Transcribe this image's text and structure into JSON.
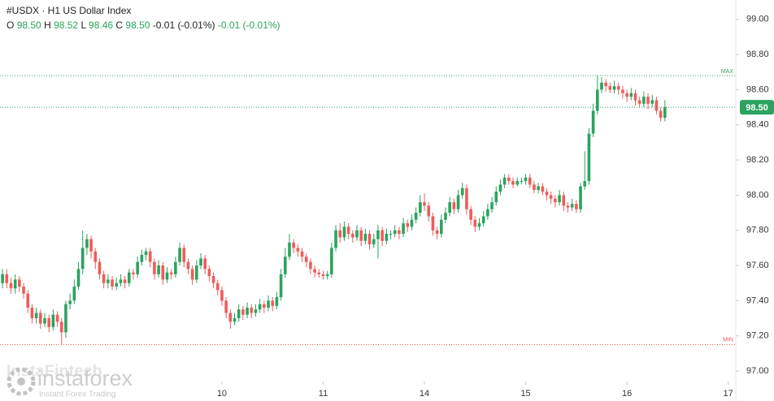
{
  "chart_data": {
    "type": "candlestick",
    "header": {
      "symbol": "#USDX · H1 US Dollar Index",
      "ohlc_labels": [
        "O",
        "H",
        "L",
        "C"
      ],
      "ohlc_values": [
        "98.50",
        "98.52",
        "98.46",
        "98.50"
      ],
      "changes": [
        "-0.01 (-0.01%)",
        "-0.01 (-0.01%)"
      ]
    },
    "up_color": "#2ba35e",
    "down_color": "#ef5b5b",
    "ylim": [
      96.94,
      99.11
    ],
    "yticks": [
      {
        "value": 97,
        "label": "97.00"
      },
      {
        "value": 97.2,
        "label": "97.20"
      },
      {
        "value": 97.4,
        "label": "97.40"
      },
      {
        "value": 97.6,
        "label": "97.60"
      },
      {
        "value": 97.8,
        "label": "97.80"
      },
      {
        "value": 98,
        "label": "98.00"
      },
      {
        "value": 98.2,
        "label": "98.20"
      },
      {
        "value": 98.4,
        "label": "98.40"
      },
      {
        "value": 98.6,
        "label": "98.60"
      },
      {
        "value": 98.8,
        "label": "98.80"
      },
      {
        "value": 99,
        "label": "99.00"
      }
    ],
    "xlim": [
      -0.6,
      173.8
    ],
    "xticks": [
      {
        "value": 52,
        "label": "10"
      },
      {
        "value": 76,
        "label": "11"
      },
      {
        "value": 100,
        "label": "14"
      },
      {
        "value": 124,
        "label": "15"
      },
      {
        "value": 148,
        "label": "16"
      },
      {
        "value": 172,
        "label": "17"
      }
    ],
    "max_line": {
      "label": "MAX",
      "value": 98.68
    },
    "min_line": {
      "label": "MIN",
      "value": 97.15
    },
    "last_price": {
      "value": 98.5,
      "label": "98.50"
    },
    "watermark": {
      "brand": "instaforex",
      "tagline": "Instant Forex Trading",
      "faint": "InstaFintech"
    },
    "candles": [
      [
        97.5,
        97.58,
        97.47,
        97.55
      ],
      [
        97.55,
        97.58,
        97.47,
        97.5
      ],
      [
        97.5,
        97.53,
        97.44,
        97.47
      ],
      [
        97.47,
        97.55,
        97.44,
        97.52
      ],
      [
        97.52,
        97.54,
        97.45,
        97.48
      ],
      [
        97.48,
        97.5,
        97.41,
        97.44
      ],
      [
        97.44,
        97.46,
        97.33,
        97.36
      ],
      [
        97.36,
        97.38,
        97.27,
        97.3
      ],
      [
        97.3,
        97.36,
        97.27,
        97.33
      ],
      [
        97.33,
        97.35,
        97.24,
        97.27
      ],
      [
        97.27,
        97.33,
        97.25,
        97.3
      ],
      [
        97.3,
        97.32,
        97.22,
        97.25
      ],
      [
        97.25,
        97.35,
        97.23,
        97.32
      ],
      [
        97.32,
        97.34,
        97.25,
        97.28
      ],
      [
        97.28,
        97.3,
        97.15,
        97.22
      ],
      [
        97.22,
        97.4,
        97.19,
        97.38
      ],
      [
        97.38,
        97.44,
        97.35,
        97.4
      ],
      [
        97.4,
        97.52,
        97.38,
        97.48
      ],
      [
        97.48,
        97.62,
        97.46,
        97.58
      ],
      [
        97.58,
        97.8,
        97.55,
        97.7
      ],
      [
        97.7,
        97.78,
        97.66,
        97.75
      ],
      [
        97.75,
        97.77,
        97.64,
        97.68
      ],
      [
        97.68,
        97.7,
        97.58,
        97.62
      ],
      [
        97.62,
        97.64,
        97.52,
        97.55
      ],
      [
        97.55,
        97.57,
        97.47,
        97.5
      ],
      [
        97.5,
        97.55,
        97.47,
        97.52
      ],
      [
        97.52,
        97.54,
        97.46,
        97.48
      ],
      [
        97.48,
        97.53,
        97.46,
        97.5
      ],
      [
        97.5,
        97.55,
        97.48,
        97.52
      ],
      [
        97.52,
        97.54,
        97.47,
        97.5
      ],
      [
        97.5,
        97.58,
        97.48,
        97.56
      ],
      [
        97.56,
        97.58,
        97.52,
        97.55
      ],
      [
        97.55,
        97.65,
        97.53,
        97.62
      ],
      [
        97.62,
        97.69,
        97.6,
        97.66
      ],
      [
        97.66,
        97.7,
        97.63,
        97.68
      ],
      [
        97.68,
        97.7,
        97.59,
        97.62
      ],
      [
        97.62,
        97.64,
        97.52,
        97.55
      ],
      [
        97.55,
        97.63,
        97.53,
        97.6
      ],
      [
        97.6,
        97.62,
        97.49,
        97.52
      ],
      [
        97.52,
        97.59,
        97.5,
        97.56
      ],
      [
        97.56,
        97.58,
        97.52,
        97.55
      ],
      [
        97.55,
        97.65,
        97.53,
        97.62
      ],
      [
        97.62,
        97.73,
        97.6,
        97.7
      ],
      [
        97.7,
        97.72,
        97.59,
        97.62
      ],
      [
        97.62,
        97.64,
        97.55,
        97.58
      ],
      [
        97.58,
        97.6,
        97.49,
        97.52
      ],
      [
        97.52,
        97.63,
        97.5,
        97.6
      ],
      [
        97.6,
        97.67,
        97.58,
        97.64
      ],
      [
        97.64,
        97.66,
        97.55,
        97.58
      ],
      [
        97.58,
        97.6,
        97.51,
        97.54
      ],
      [
        97.54,
        97.56,
        97.47,
        97.5
      ],
      [
        97.5,
        97.52,
        97.43,
        97.46
      ],
      [
        97.46,
        97.48,
        97.37,
        97.4
      ],
      [
        97.4,
        97.42,
        97.3,
        97.33
      ],
      [
        97.33,
        97.35,
        97.24,
        97.28
      ],
      [
        97.28,
        97.33,
        97.26,
        97.3
      ],
      [
        97.3,
        97.38,
        97.28,
        97.35
      ],
      [
        97.35,
        97.37,
        97.29,
        97.32
      ],
      [
        97.32,
        97.39,
        97.3,
        97.36
      ],
      [
        97.36,
        97.38,
        97.3,
        97.33
      ],
      [
        97.33,
        97.38,
        97.31,
        97.35
      ],
      [
        97.35,
        97.41,
        97.33,
        97.38
      ],
      [
        97.38,
        97.4,
        97.33,
        97.36
      ],
      [
        97.36,
        97.43,
        97.34,
        97.4
      ],
      [
        97.4,
        97.42,
        97.34,
        97.37
      ],
      [
        97.37,
        97.45,
        97.35,
        97.42
      ],
      [
        97.42,
        97.58,
        97.4,
        97.55
      ],
      [
        97.55,
        97.7,
        97.53,
        97.65
      ],
      [
        97.65,
        97.78,
        97.63,
        97.73
      ],
      [
        97.73,
        97.75,
        97.67,
        97.7
      ],
      [
        97.7,
        97.72,
        97.65,
        97.68
      ],
      [
        97.68,
        97.7,
        97.62,
        97.65
      ],
      [
        97.65,
        97.67,
        97.59,
        97.62
      ],
      [
        97.62,
        97.64,
        97.55,
        97.58
      ],
      [
        97.58,
        97.6,
        97.53,
        97.56
      ],
      [
        97.56,
        97.58,
        97.53,
        97.55
      ],
      [
        97.55,
        97.57,
        97.52,
        97.54
      ],
      [
        97.54,
        97.57,
        97.52,
        97.55
      ],
      [
        97.55,
        97.73,
        97.53,
        97.7
      ],
      [
        97.7,
        97.83,
        97.68,
        97.8
      ],
      [
        97.8,
        97.84,
        97.73,
        97.76
      ],
      [
        97.76,
        97.85,
        97.74,
        97.82
      ],
      [
        97.82,
        97.84,
        97.75,
        97.78
      ],
      [
        97.78,
        97.8,
        97.73,
        97.76
      ],
      [
        97.76,
        97.83,
        97.74,
        97.8
      ],
      [
        97.8,
        97.82,
        97.71,
        97.74
      ],
      [
        97.74,
        97.81,
        97.72,
        97.78
      ],
      [
        97.78,
        97.8,
        97.69,
        97.72
      ],
      [
        97.72,
        97.78,
        97.7,
        97.75
      ],
      [
        97.75,
        97.83,
        97.64,
        97.8
      ],
      [
        97.8,
        97.82,
        97.71,
        97.74
      ],
      [
        97.74,
        97.81,
        97.72,
        97.78
      ],
      [
        97.78,
        97.8,
        97.75,
        97.78
      ],
      [
        97.78,
        97.83,
        97.76,
        97.8
      ],
      [
        97.8,
        97.82,
        97.75,
        97.78
      ],
      [
        97.78,
        97.87,
        97.76,
        97.84
      ],
      [
        97.84,
        97.86,
        97.79,
        97.82
      ],
      [
        97.82,
        97.89,
        97.8,
        97.86
      ],
      [
        97.86,
        97.93,
        97.84,
        97.9
      ],
      [
        97.9,
        98.0,
        97.88,
        97.96
      ],
      [
        97.96,
        98.01,
        97.91,
        97.94
      ],
      [
        97.94,
        97.96,
        97.85,
        97.88
      ],
      [
        97.88,
        97.9,
        97.77,
        97.8
      ],
      [
        97.8,
        97.82,
        97.75,
        97.78
      ],
      [
        97.78,
        97.89,
        97.76,
        97.86
      ],
      [
        97.86,
        97.93,
        97.84,
        97.9
      ],
      [
        97.9,
        97.99,
        97.88,
        97.96
      ],
      [
        97.96,
        97.98,
        97.89,
        97.92
      ],
      [
        97.92,
        98.03,
        97.9,
        98.0
      ],
      [
        98.0,
        98.07,
        97.98,
        98.04
      ],
      [
        98.04,
        98.06,
        97.89,
        97.92
      ],
      [
        97.92,
        97.94,
        97.83,
        97.86
      ],
      [
        97.86,
        97.88,
        97.79,
        97.82
      ],
      [
        97.82,
        97.87,
        97.8,
        97.84
      ],
      [
        97.84,
        97.91,
        97.82,
        97.88
      ],
      [
        97.88,
        97.95,
        97.86,
        97.92
      ],
      [
        97.92,
        97.99,
        97.9,
        97.96
      ],
      [
        97.96,
        98.05,
        97.94,
        98.02
      ],
      [
        98.02,
        98.09,
        98.0,
        98.06
      ],
      [
        98.06,
        98.12,
        98.04,
        98.1
      ],
      [
        98.1,
        98.12,
        98.06,
        98.08
      ],
      [
        98.08,
        98.1,
        98.04,
        98.06
      ],
      [
        98.06,
        98.1,
        98.05,
        98.08
      ],
      [
        98.08,
        98.1,
        98.06,
        98.08
      ],
      [
        98.08,
        98.12,
        98.06,
        98.1
      ],
      [
        98.1,
        98.12,
        98.04,
        98.06
      ],
      [
        98.06,
        98.08,
        98.01,
        98.03
      ],
      [
        98.03,
        98.07,
        98.01,
        98.05
      ],
      [
        98.05,
        98.07,
        98.0,
        98.02
      ],
      [
        98.02,
        98.04,
        97.97,
        98.0
      ],
      [
        98.0,
        98.02,
        97.95,
        97.98
      ],
      [
        97.98,
        98.0,
        97.93,
        97.96
      ],
      [
        97.96,
        98.03,
        97.94,
        98.0
      ],
      [
        98.0,
        98.02,
        97.91,
        97.94
      ],
      [
        97.94,
        97.96,
        97.9,
        97.93
      ],
      [
        97.93,
        97.98,
        97.91,
        97.95
      ],
      [
        97.95,
        97.97,
        97.9,
        97.92
      ],
      [
        97.92,
        98.07,
        97.9,
        98.05
      ],
      [
        98.05,
        98.25,
        98.03,
        98.08
      ],
      [
        98.08,
        98.38,
        98.06,
        98.35
      ],
      [
        98.35,
        98.52,
        98.33,
        98.48
      ],
      [
        98.48,
        98.68,
        98.46,
        98.6
      ],
      [
        98.6,
        98.67,
        98.58,
        98.64
      ],
      [
        98.64,
        98.66,
        98.59,
        98.62
      ],
      [
        98.62,
        98.64,
        98.58,
        98.6
      ],
      [
        98.6,
        98.65,
        98.58,
        98.62
      ],
      [
        98.62,
        98.64,
        98.57,
        98.6
      ],
      [
        98.6,
        98.62,
        98.55,
        98.58
      ],
      [
        98.58,
        98.6,
        98.53,
        98.56
      ],
      [
        98.56,
        98.61,
        98.54,
        98.58
      ],
      [
        98.58,
        98.6,
        98.51,
        98.54
      ],
      [
        98.54,
        98.56,
        98.5,
        98.52
      ],
      [
        98.52,
        98.59,
        98.5,
        98.56
      ],
      [
        98.56,
        98.58,
        98.49,
        98.52
      ],
      [
        98.52,
        98.57,
        98.5,
        98.54
      ],
      [
        98.54,
        98.56,
        98.46,
        98.48
      ],
      [
        98.48,
        98.5,
        98.42,
        98.44
      ],
      [
        98.44,
        98.54,
        98.42,
        98.5
      ]
    ]
  }
}
